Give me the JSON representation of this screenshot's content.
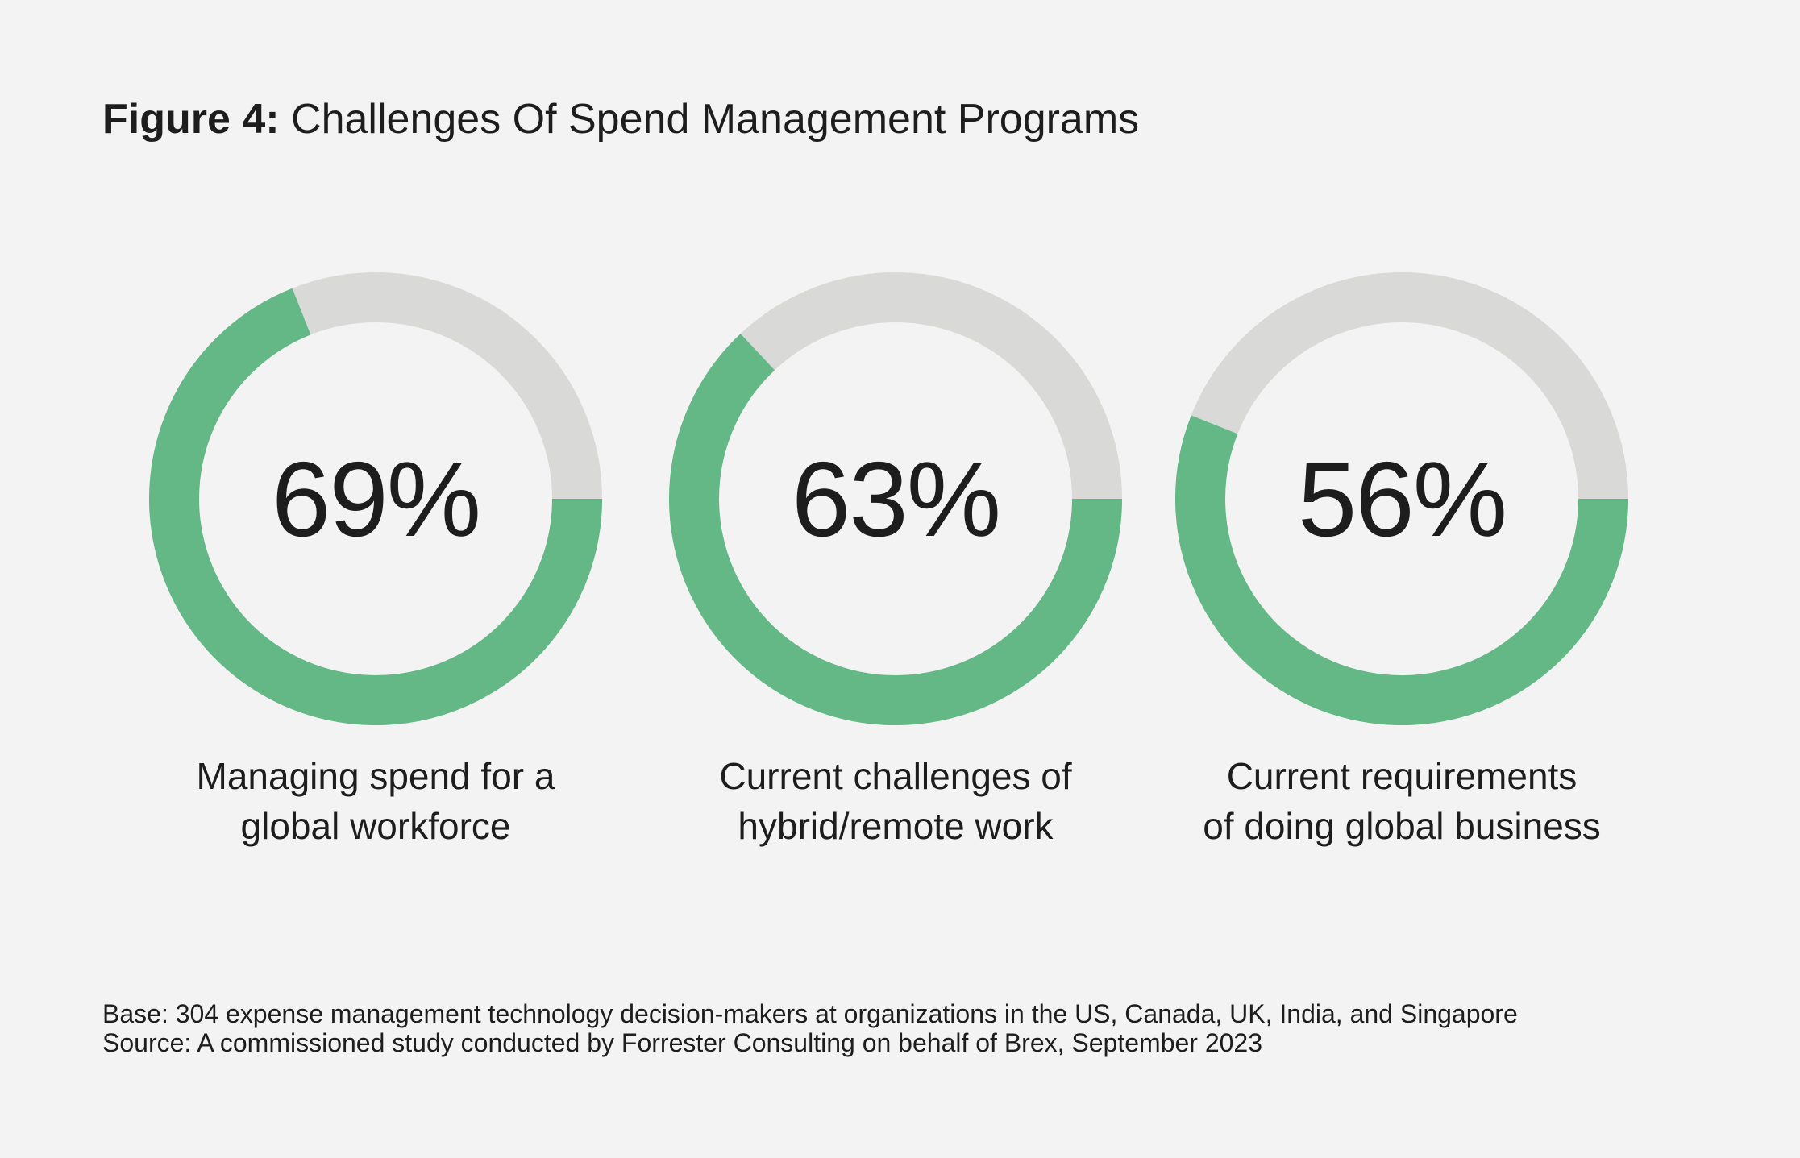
{
  "figure": {
    "title_prefix": "Figure 4:",
    "title_main": "Challenges Of Spend Management Programs"
  },
  "colors": {
    "background": "#f3f3f3",
    "filled": "#63b886",
    "remaining": "#d9d9d7",
    "text": "#1d1d1d"
  },
  "chart_data": {
    "type": "donut",
    "unit": "%",
    "items": [
      {
        "value": 69,
        "display": "69%",
        "label_lines": [
          "Managing spend for a",
          "global workforce"
        ]
      },
      {
        "value": 63,
        "display": "63%",
        "label_lines": [
          "Current challenges of",
          "hybrid/remote work"
        ]
      },
      {
        "value": 56,
        "display": "56%",
        "label_lines": [
          "Current requirements",
          "of doing global business"
        ]
      }
    ],
    "max": 100
  },
  "footnote": {
    "base": "Base: 304 expense management technology decision-makers at organizations in the US, Canada, UK, India, and Singapore",
    "source": "Source: A commissioned study conducted by Forrester Consulting on behalf of Brex, September 2023"
  }
}
